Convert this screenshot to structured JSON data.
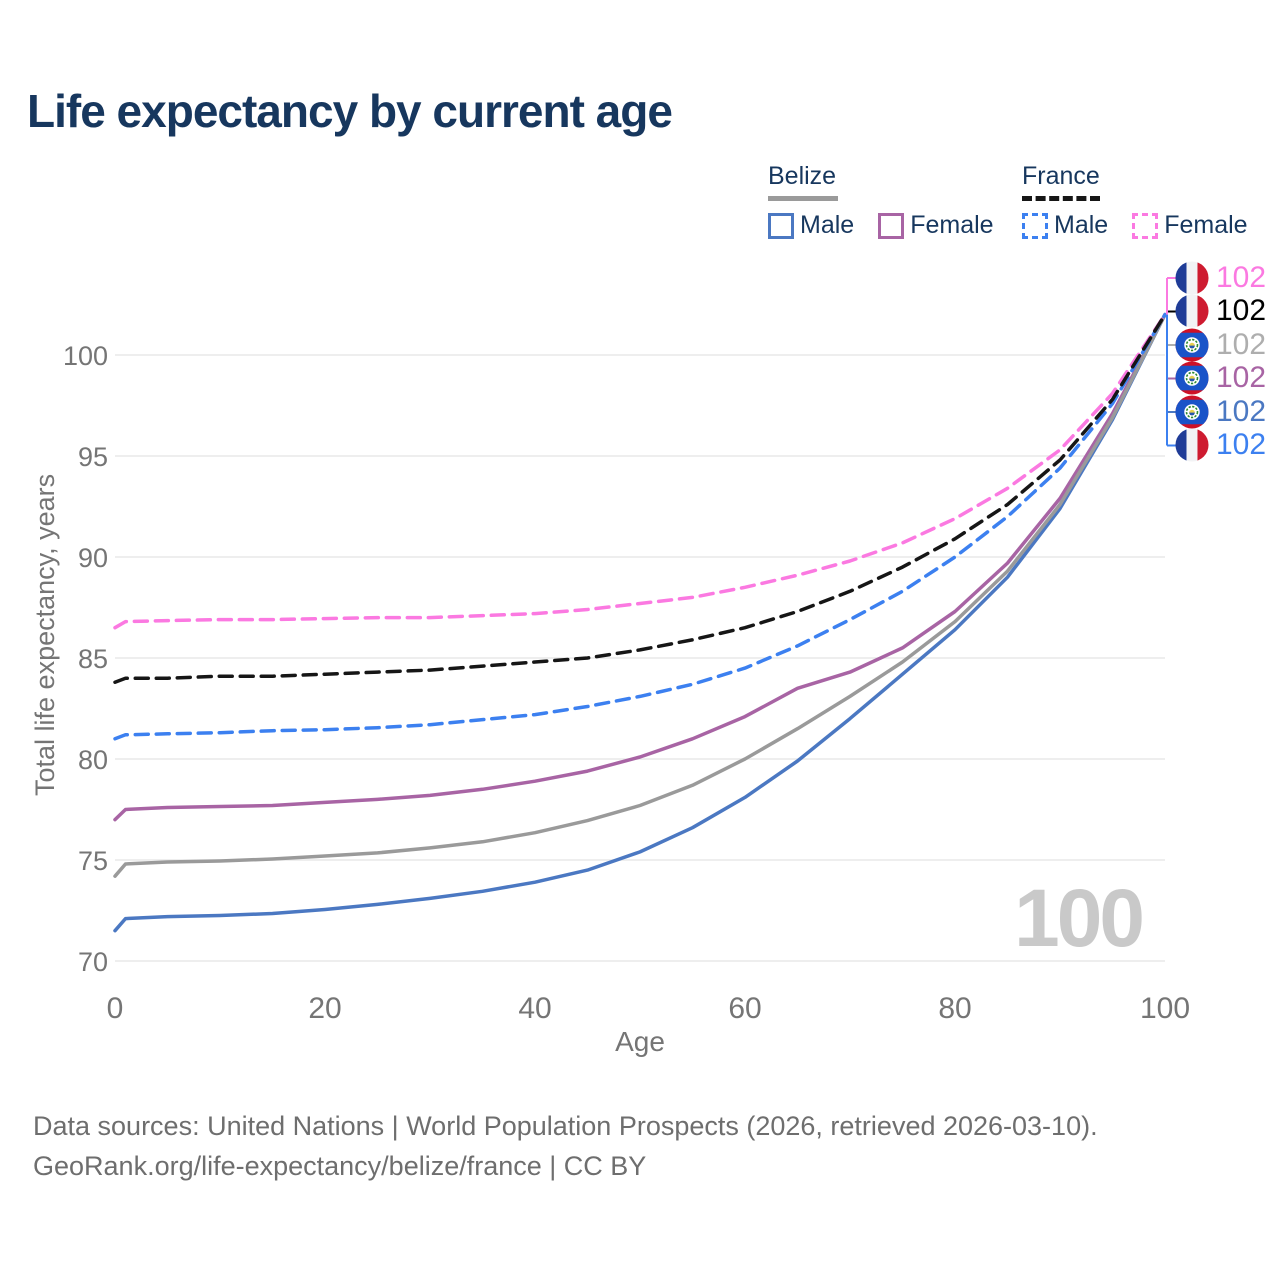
{
  "legend": {
    "groups": [
      {
        "label": "Belize",
        "style": "solid",
        "items": [
          {
            "label": "Male"
          },
          {
            "label": "Female"
          }
        ]
      },
      {
        "label": "France",
        "style": "dashed",
        "items": [
          {
            "label": "Male"
          },
          {
            "label": "Female"
          }
        ]
      }
    ]
  },
  "chart_data": {
    "type": "line",
    "title": "Life expectancy by current age",
    "xlabel": "Age",
    "ylabel": "Total life expectancy, years",
    "xlim": [
      0,
      100
    ],
    "ylim": [
      70,
      100
    ],
    "xticks": [
      0,
      20,
      40,
      60,
      80,
      100
    ],
    "yticks": [
      70,
      75,
      80,
      85,
      90,
      95,
      100
    ],
    "grid": "horizontal",
    "legend_position": "top-right",
    "watermark": "100",
    "series": [
      {
        "id": "belize-male",
        "name": "Belize Male",
        "country": "Belize",
        "sex": "Male",
        "style": "solid",
        "color": "#4b78c2",
        "points": [
          [
            0,
            71.5
          ],
          [
            1,
            72.1
          ],
          [
            5,
            72.2
          ],
          [
            10,
            72.25
          ],
          [
            15,
            72.35
          ],
          [
            20,
            72.55
          ],
          [
            25,
            72.8
          ],
          [
            30,
            73.1
          ],
          [
            35,
            73.45
          ],
          [
            40,
            73.9
          ],
          [
            45,
            74.5
          ],
          [
            50,
            75.4
          ],
          [
            55,
            76.6
          ],
          [
            60,
            78.1
          ],
          [
            65,
            79.9
          ],
          [
            70,
            82.0
          ],
          [
            75,
            84.2
          ],
          [
            80,
            86.4
          ],
          [
            85,
            89.0
          ],
          [
            90,
            92.4
          ],
          [
            95,
            96.8
          ],
          [
            100,
            102
          ]
        ]
      },
      {
        "id": "belize-female",
        "name": "Belize Female",
        "country": "Belize",
        "sex": "Female",
        "style": "solid",
        "color": "#a864a4",
        "points": [
          [
            0,
            77.0
          ],
          [
            1,
            77.5
          ],
          [
            5,
            77.6
          ],
          [
            10,
            77.65
          ],
          [
            15,
            77.7
          ],
          [
            20,
            77.85
          ],
          [
            25,
            78.0
          ],
          [
            30,
            78.2
          ],
          [
            35,
            78.5
          ],
          [
            40,
            78.9
          ],
          [
            45,
            79.4
          ],
          [
            50,
            80.1
          ],
          [
            55,
            81.0
          ],
          [
            60,
            82.1
          ],
          [
            65,
            83.5
          ],
          [
            70,
            84.3
          ],
          [
            75,
            85.5
          ],
          [
            80,
            87.3
          ],
          [
            85,
            89.7
          ],
          [
            90,
            92.9
          ],
          [
            95,
            97.1
          ],
          [
            100,
            102
          ]
        ]
      },
      {
        "id": "belize-both",
        "name": "Belize Both sexes",
        "country": "Belize",
        "sex": "Both",
        "style": "solid",
        "color": "#9a9a9a",
        "points": [
          [
            0,
            74.2
          ],
          [
            1,
            74.8
          ],
          [
            5,
            74.9
          ],
          [
            10,
            74.95
          ],
          [
            15,
            75.05
          ],
          [
            20,
            75.2
          ],
          [
            25,
            75.35
          ],
          [
            30,
            75.6
          ],
          [
            35,
            75.9
          ],
          [
            40,
            76.35
          ],
          [
            45,
            76.95
          ],
          [
            50,
            77.7
          ],
          [
            55,
            78.7
          ],
          [
            60,
            80.0
          ],
          [
            65,
            81.5
          ],
          [
            70,
            83.1
          ],
          [
            75,
            84.8
          ],
          [
            80,
            86.8
          ],
          [
            85,
            89.3
          ],
          [
            90,
            92.6
          ],
          [
            95,
            96.9
          ],
          [
            100,
            102
          ]
        ]
      },
      {
        "id": "france-male",
        "name": "France Male",
        "country": "France",
        "sex": "Male",
        "style": "dashed",
        "color": "#3c80f0",
        "points": [
          [
            0,
            81.0
          ],
          [
            1,
            81.2
          ],
          [
            5,
            81.25
          ],
          [
            10,
            81.3
          ],
          [
            15,
            81.4
          ],
          [
            20,
            81.45
          ],
          [
            25,
            81.55
          ],
          [
            30,
            81.7
          ],
          [
            35,
            81.95
          ],
          [
            40,
            82.2
          ],
          [
            45,
            82.6
          ],
          [
            50,
            83.1
          ],
          [
            55,
            83.7
          ],
          [
            60,
            84.5
          ],
          [
            65,
            85.6
          ],
          [
            70,
            86.9
          ],
          [
            75,
            88.3
          ],
          [
            80,
            90.0
          ],
          [
            85,
            92.0
          ],
          [
            90,
            94.4
          ],
          [
            95,
            97.6
          ],
          [
            100,
            102
          ]
        ]
      },
      {
        "id": "france-female",
        "name": "France Female",
        "country": "France",
        "sex": "Female",
        "style": "dashed",
        "color": "#fb79e1",
        "points": [
          [
            0,
            86.5
          ],
          [
            1,
            86.8
          ],
          [
            5,
            86.85
          ],
          [
            10,
            86.9
          ],
          [
            15,
            86.9
          ],
          [
            20,
            86.95
          ],
          [
            25,
            87.0
          ],
          [
            30,
            87.0
          ],
          [
            35,
            87.1
          ],
          [
            40,
            87.2
          ],
          [
            45,
            87.4
          ],
          [
            50,
            87.7
          ],
          [
            55,
            88.0
          ],
          [
            60,
            88.5
          ],
          [
            65,
            89.1
          ],
          [
            70,
            89.8
          ],
          [
            75,
            90.7
          ],
          [
            80,
            91.9
          ],
          [
            85,
            93.4
          ],
          [
            90,
            95.3
          ],
          [
            95,
            98.1
          ],
          [
            100,
            102
          ]
        ]
      },
      {
        "id": "france-both",
        "name": "France Both sexes",
        "country": "France",
        "sex": "Both",
        "style": "dashed",
        "color": "#161616",
        "points": [
          [
            0,
            83.8
          ],
          [
            1,
            84.0
          ],
          [
            5,
            84.0
          ],
          [
            10,
            84.1
          ],
          [
            15,
            84.1
          ],
          [
            20,
            84.2
          ],
          [
            25,
            84.3
          ],
          [
            30,
            84.4
          ],
          [
            35,
            84.6
          ],
          [
            40,
            84.8
          ],
          [
            45,
            85.0
          ],
          [
            50,
            85.4
          ],
          [
            55,
            85.9
          ],
          [
            60,
            86.5
          ],
          [
            65,
            87.3
          ],
          [
            70,
            88.3
          ],
          [
            75,
            89.5
          ],
          [
            80,
            90.9
          ],
          [
            85,
            92.6
          ],
          [
            90,
            94.8
          ],
          [
            95,
            97.8
          ],
          [
            100,
            102
          ]
        ]
      }
    ],
    "end_labels": [
      {
        "flag": "france",
        "series": "france-female",
        "color": "#fb79e1",
        "value": "102"
      },
      {
        "flag": "france",
        "series": "france-both",
        "color": "#000000",
        "value": "102"
      },
      {
        "flag": "belize",
        "series": "belize-both",
        "color": "#aeaeae",
        "value": "102"
      },
      {
        "flag": "belize",
        "series": "belize-female",
        "color": "#a864a4",
        "value": "102"
      },
      {
        "flag": "belize",
        "series": "belize-male",
        "color": "#4b78c2",
        "value": "102"
      },
      {
        "flag": "france",
        "series": "france-male",
        "color": "#3c80f0",
        "value": "102"
      }
    ]
  },
  "footer": {
    "line1": "Data sources: United Nations | World Population Prospects (2026, retrieved 2026-03-10).",
    "line2": "GeoRank.org/life-expectancy/belize/france | CC BY"
  }
}
